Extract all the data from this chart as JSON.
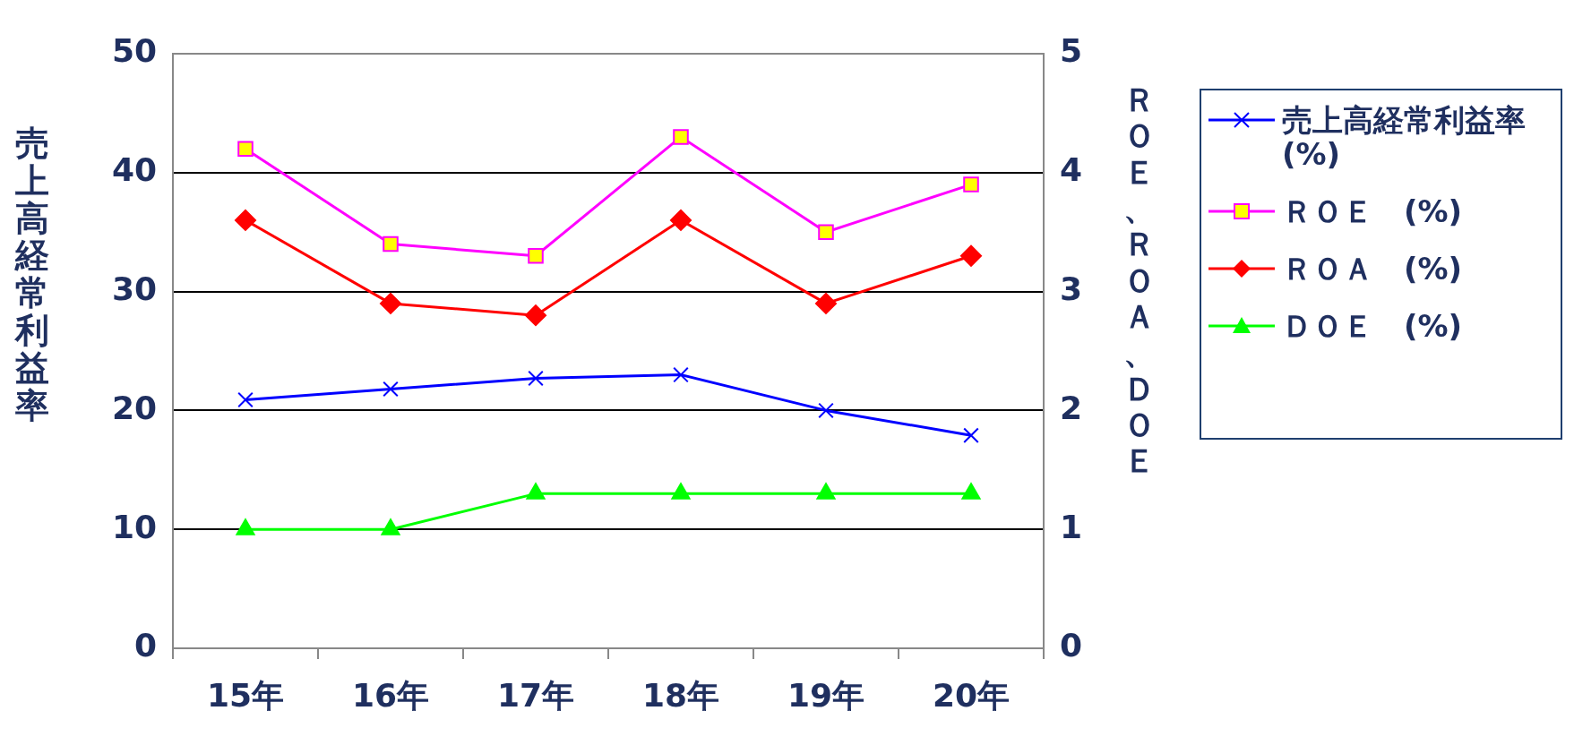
{
  "chart_data": {
    "type": "line",
    "categories": [
      "15年",
      "16年",
      "17年",
      "18年",
      "19年",
      "20年"
    ],
    "ylabel": "売上高経常利益率",
    "y2label": "ＲＯＥ、ＲＯＡ、ＤＯＥ",
    "ylim": [
      0,
      50
    ],
    "yticks": [
      0,
      10,
      20,
      30,
      40,
      50
    ],
    "y2lim": [
      0,
      5
    ],
    "y2ticks": [
      0,
      1,
      2,
      3,
      4,
      5
    ],
    "grid": "y",
    "legend": "right",
    "line_style": "solid",
    "series": [
      {
        "name": "売上高経常利益率 (%)",
        "color": "#0000ff",
        "marker": "cross",
        "values": [
          20.9,
          21.8,
          22.7,
          23.0,
          20.0,
          17.9
        ]
      },
      {
        "name": "ＲＯＥ　(%)",
        "color": "#ff00ff",
        "marker": "square",
        "axis": "y2",
        "values": [
          4.2,
          3.4,
          3.3,
          4.3,
          3.5,
          3.9
        ]
      },
      {
        "name": "ＲＯＡ　(%)",
        "color": "#ff0000",
        "marker": "diamond",
        "axis": "y2",
        "values": [
          3.6,
          2.9,
          2.8,
          3.6,
          2.9,
          3.3
        ]
      },
      {
        "name": "ＤＯＥ　(%)",
        "color": "#00ff00",
        "marker": "triangle",
        "axis": "y2",
        "values": [
          1.0,
          1.0,
          1.3,
          1.3,
          1.3,
          1.3
        ]
      }
    ]
  }
}
